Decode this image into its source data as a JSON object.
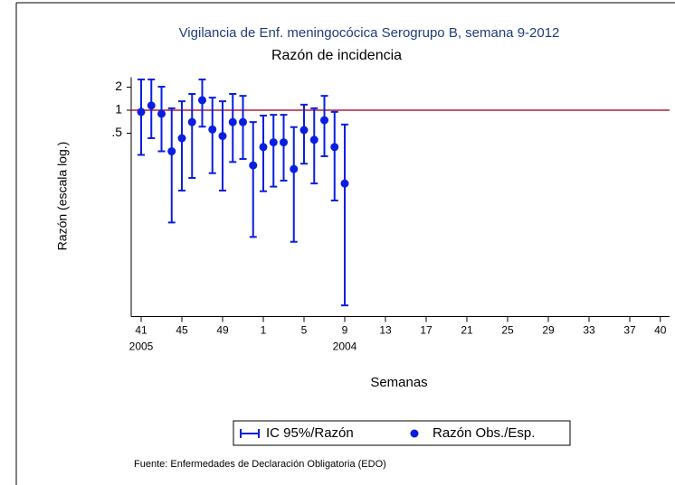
{
  "chart_data": {
    "type": "errorbar-log",
    "title": "Vigilancia de Enf. meningocócica Serogrupo B, semana 9-2012",
    "subtitle": "Razón de incidencia",
    "y_label": "Razón (escala log.)",
    "x_label": "Semanas",
    "source": "Fuente: Enfermedades de Declaración Obligatoria (EDO)",
    "log_y": true,
    "categories": [
      "41",
      null,
      null,
      null,
      "45",
      null,
      null,
      null,
      "49",
      null,
      null,
      null,
      "1",
      null,
      null,
      null,
      "5",
      null,
      null,
      null,
      "9",
      null,
      null,
      null,
      "13",
      null,
      null,
      null,
      "17",
      null,
      null,
      null,
      "21",
      null,
      null,
      null,
      "25",
      null,
      null,
      null,
      "29",
      null,
      null,
      null,
      "33",
      null,
      null,
      null,
      "37",
      null,
      null,
      "40"
    ],
    "x_sublabels": [
      "2005",
      null,
      null,
      null,
      null,
      null,
      null,
      null,
      null,
      null,
      null,
      null,
      null,
      null,
      null,
      null,
      null,
      null,
      null,
      null,
      "2004",
      null,
      null,
      null,
      null,
      null,
      null,
      null,
      null,
      null,
      null,
      null,
      null,
      null,
      null,
      null,
      null,
      null,
      null,
      null,
      null,
      null,
      null,
      null,
      null,
      null,
      null,
      null,
      null,
      null,
      null,
      null
    ],
    "ylim": [
      0.002,
      2.7
    ],
    "yticks": [
      2,
      1,
      {
        "value": 0.5,
        "label": ".5"
      }
    ],
    "hline": 1,
    "hline_color": "#b0203a",
    "series": [
      {
        "name": "Razón Obs./Esp.",
        "color": "#0a1ee0",
        "values": [
          0.95,
          1.15,
          0.9,
          0.29,
          0.43,
          0.7,
          1.35,
          0.56,
          0.46,
          0.7,
          0.7,
          0.19,
          0.33,
          0.38,
          0.38,
          0.17,
          0.55,
          0.41,
          0.74,
          0.33,
          0.11,
          null,
          null,
          null,
          null,
          null,
          null,
          null,
          null,
          null,
          null,
          null,
          null,
          null,
          null,
          null,
          null,
          null,
          null,
          null,
          null,
          null,
          null,
          null,
          null,
          null,
          null,
          null,
          null,
          null,
          null,
          null
        ]
      },
      {
        "name": "IC 95%/Razón",
        "color": "#0a1ee0",
        "ci_low": [
          0.26,
          0.43,
          0.29,
          0.034,
          0.089,
          0.13,
          0.61,
          0.15,
          0.089,
          0.21,
          0.23,
          0.022,
          0.087,
          0.1,
          0.12,
          0.019,
          0.2,
          0.11,
          0.25,
          0.066,
          0.0028,
          null,
          null,
          null,
          null,
          null,
          null,
          null,
          null,
          null,
          null,
          null,
          null,
          null,
          null,
          null,
          null,
          null,
          null,
          null,
          null,
          null,
          null,
          null,
          null,
          null,
          null,
          null,
          null,
          null,
          null,
          null
        ],
        "ci_high": [
          2.52,
          2.52,
          2.03,
          1.06,
          1.31,
          1.63,
          2.52,
          1.46,
          1.31,
          1.63,
          1.54,
          0.7,
          0.85,
          0.87,
          0.87,
          0.6,
          1.18,
          1.06,
          1.54,
          0.95,
          0.65,
          null,
          null,
          null,
          null,
          null,
          null,
          null,
          null,
          null,
          null,
          null,
          null,
          null,
          null,
          null,
          null,
          null,
          null,
          null,
          null,
          null,
          null,
          null,
          null,
          null,
          null,
          null,
          null,
          null,
          null,
          null
        ]
      }
    ]
  }
}
